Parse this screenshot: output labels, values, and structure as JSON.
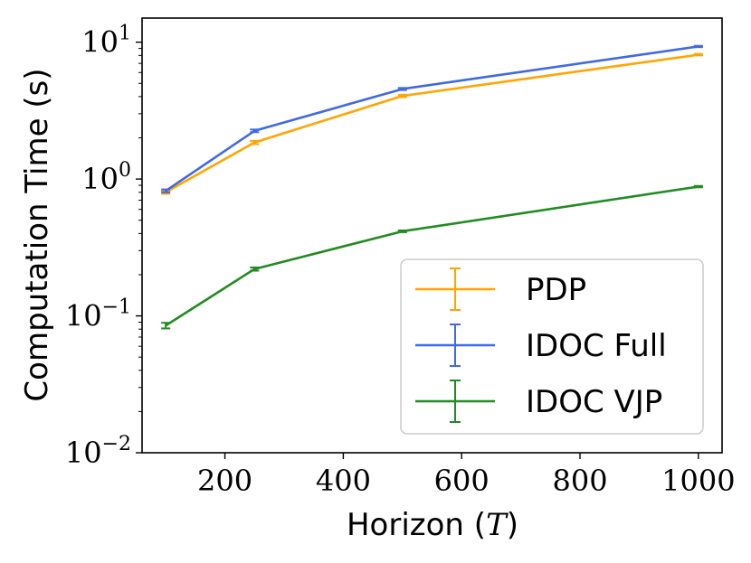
{
  "chart_data": {
    "type": "line",
    "title": "",
    "xlabel": "Horizon",
    "xlabel_symbol": "T",
    "ylabel": "Computation Time (s)",
    "yscale": "log",
    "xlim": [
      60,
      1040
    ],
    "ylim": [
      0.01,
      15
    ],
    "x_ticks": [
      200,
      400,
      600,
      800,
      1000
    ],
    "x_tick_labels": [
      "200",
      "400",
      "600",
      "800",
      "1000"
    ],
    "y_ticks": [
      {
        "value": 0.01,
        "base": "10",
        "exp": "−2"
      },
      {
        "value": 0.1,
        "base": "10",
        "exp": "−1"
      },
      {
        "value": 1,
        "base": "10",
        "exp": "0"
      },
      {
        "value": 10,
        "base": "10",
        "exp": "1"
      }
    ],
    "grid": false,
    "legend_position": "lower-right",
    "x": [
      100,
      250,
      500,
      1000
    ],
    "series": [
      {
        "name": "PDP",
        "color": "#FFA500",
        "values": [
          0.8,
          1.85,
          4.05,
          8.1
        ],
        "errors": [
          0.02,
          0.05,
          0.08,
          0.1
        ]
      },
      {
        "name": "IDOC Full",
        "color": "#4169E1",
        "values": [
          0.82,
          2.25,
          4.55,
          9.3
        ],
        "errors": [
          0.02,
          0.05,
          0.08,
          0.1
        ]
      },
      {
        "name": "IDOC VJP",
        "color": "#228B22",
        "values": [
          0.085,
          0.22,
          0.415,
          0.88
        ],
        "errors": [
          0.004,
          0.006,
          0.006,
          0.01
        ]
      }
    ]
  }
}
